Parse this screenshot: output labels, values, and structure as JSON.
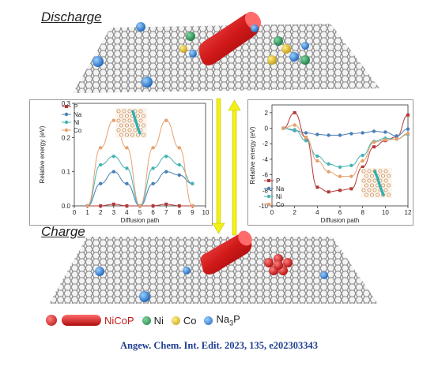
{
  "labels": {
    "discharge": "Discharge",
    "charge": "Charge"
  },
  "legend": {
    "nicop": "NiCoP",
    "ni": "Ni",
    "co": "Co",
    "na3p_main": "Na",
    "na3p_sub": "3",
    "na3p_tail": "P"
  },
  "citation": "Angew. Chem. Int. Edit. 2023, 135, e202303343",
  "colors": {
    "P": "#b33a3a",
    "Na": "#4a7fb5",
    "Ni": "#46b3b3",
    "Co": "#e8a070",
    "arrow": "#f3f018",
    "nicop": "#d21f1f",
    "ni_dot": "#2e8b57",
    "co_dot": "#d4b020",
    "na3p_dot": "#2a7fd0"
  },
  "chart_data": [
    {
      "type": "line",
      "xlabel": "Diffusion path",
      "ylabel": "Relative energy (eV)",
      "xlim": [
        0,
        10
      ],
      "ylim": [
        0,
        0.3
      ],
      "xticks": [
        "0",
        "1",
        "2",
        "3",
        "4",
        "5",
        "6",
        "7",
        "8",
        "9",
        "10"
      ],
      "yticks": [
        "0.0",
        "0.1",
        "0.2",
        "0.3"
      ],
      "legend_position": "top-left",
      "x": [
        1,
        2,
        3,
        4,
        5,
        6,
        7,
        8,
        9
      ],
      "series": [
        {
          "name": "P",
          "values": [
            0.0,
            0.0,
            0.005,
            0.0,
            0.0,
            0.0,
            0.005,
            0.0,
            0.0
          ]
        },
        {
          "name": "Na",
          "values": [
            0.0,
            0.065,
            0.1,
            0.065,
            0.0,
            0.065,
            0.1,
            0.09,
            0.065
          ]
        },
        {
          "name": "Ni",
          "values": [
            0.0,
            0.12,
            0.145,
            0.11,
            0.0,
            0.11,
            0.145,
            0.12,
            0.065
          ]
        },
        {
          "name": "Co",
          "values": [
            0.0,
            0.17,
            0.25,
            0.17,
            0.0,
            0.17,
            0.25,
            0.17,
            0.0
          ]
        }
      ]
    },
    {
      "type": "line",
      "xlabel": "Diffusion path",
      "ylabel": "Relative energy (eV)",
      "xlim": [
        0,
        12
      ],
      "ylim": [
        -10,
        3
      ],
      "xticks": [
        "0",
        "2",
        "4",
        "6",
        "8",
        "10",
        "12"
      ],
      "yticks": [
        "-10",
        "-8",
        "-6",
        "-4",
        "-2",
        "0",
        "2"
      ],
      "legend_position": "bottom-left",
      "x": [
        1,
        2,
        3,
        4,
        5,
        6,
        7,
        8,
        9,
        10,
        11,
        12
      ],
      "series": [
        {
          "name": "P",
          "values": [
            0.0,
            2.0,
            -1.2,
            -7.6,
            -8.2,
            -8.0,
            -7.8,
            -5.0,
            -2.4,
            -1.6,
            -1.1,
            1.7
          ]
        },
        {
          "name": "Na",
          "values": [
            0.0,
            -0.3,
            -0.6,
            -0.8,
            -0.9,
            -0.9,
            -0.7,
            -0.6,
            -0.4,
            -0.5,
            -1.0,
            -0.1
          ]
        },
        {
          "name": "Ni",
          "values": [
            0.0,
            -0.2,
            -1.6,
            -3.6,
            -4.6,
            -5.0,
            -4.8,
            -3.5,
            -1.7,
            -1.3,
            -1.4,
            -0.8
          ]
        },
        {
          "name": "Co",
          "values": [
            0.0,
            0.4,
            -1.2,
            -4.2,
            -5.6,
            -6.2,
            -6.2,
            -4.2,
            -1.8,
            -1.5,
            -1.4,
            -0.7
          ]
        }
      ]
    }
  ]
}
